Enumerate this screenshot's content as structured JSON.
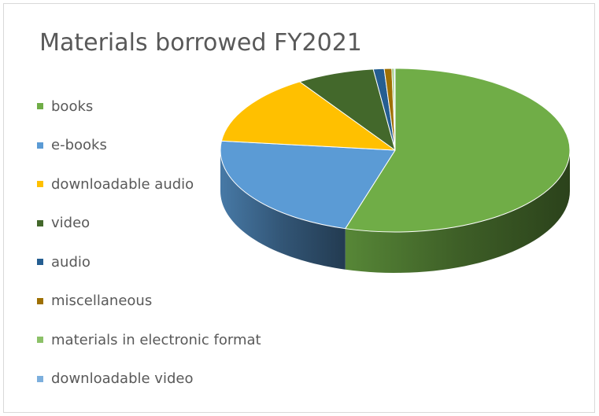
{
  "chart_data": {
    "type": "pie",
    "title": "Materials borrowed FY2021",
    "categories": [
      "books",
      "e-books",
      "downloadable audio",
      "video",
      "audio",
      "miscellaneous",
      "materials in electronic format",
      "downloadable video"
    ],
    "values": [
      54.6,
      22.2,
      14.0,
      7.2,
      1.0,
      0.7,
      0.2,
      0.1
    ],
    "colors": [
      "#70ad47",
      "#5b9bd5",
      "#ffc000",
      "#43682b",
      "#255e91",
      "#9e7003",
      "#8cc168",
      "#7cafdd"
    ],
    "legend_position": "left",
    "style": "3d"
  }
}
